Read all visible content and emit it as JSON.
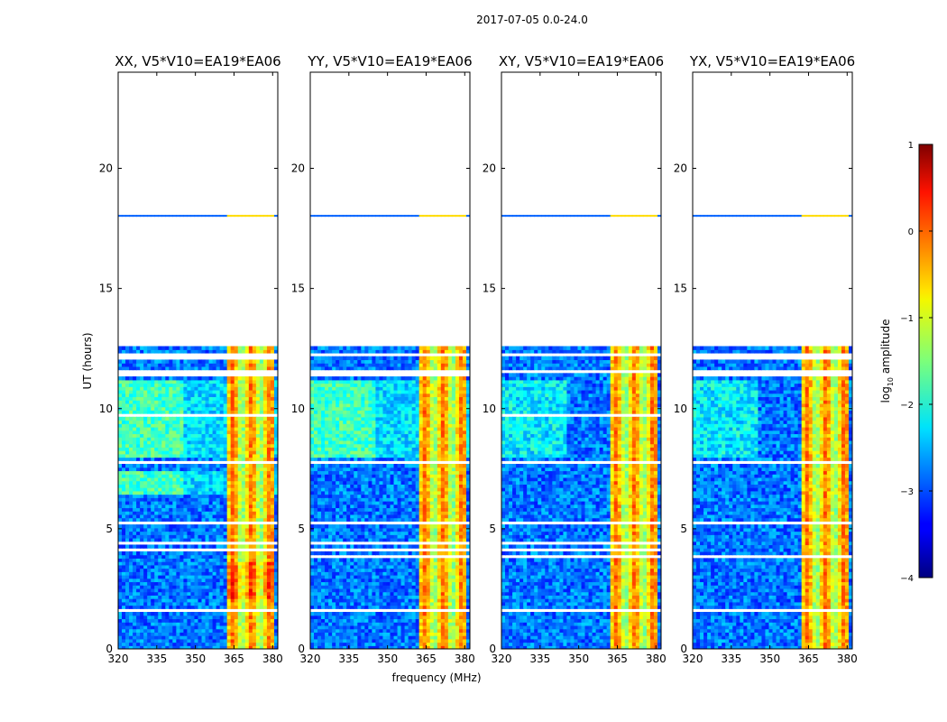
{
  "suptitle": "2017-07-05 0.0-24.0",
  "xlabel": "frequency (MHz)",
  "ylabel": "UT (hours)",
  "colorbar": {
    "label": "log",
    "label_sub": "10",
    "label_suffix": " amplitude",
    "ticks": [
      1,
      0,
      -1,
      -2,
      -3,
      -4
    ],
    "tick_labels": [
      "1",
      "0",
      "−1",
      "−2",
      "−3",
      "−4"
    ],
    "range": [
      -4,
      1
    ],
    "colormap": "jet"
  },
  "chart_data": {
    "type": "heatmap",
    "x_range": [
      320,
      382
    ],
    "y_range": [
      0,
      24
    ],
    "x_ticks": [
      320,
      335,
      350,
      365,
      380
    ],
    "y_ticks": [
      0,
      5,
      10,
      15,
      20
    ],
    "panels": [
      {
        "title": "XX, V5*V10=EA19*EA06",
        "pol": "XX"
      },
      {
        "title": "YY, V5*V10=EA19*EA06",
        "pol": "YY"
      },
      {
        "title": "XY, V5*V10=EA19*EA06",
        "pol": "XY"
      },
      {
        "title": "YX, V5*V10=EA19*EA06",
        "pol": "YX"
      }
    ],
    "data_time_range_hours": [
      0,
      12.6
    ],
    "extra_data_row_hours": 18.0,
    "bright_band_mhz": [
      362,
      380
    ],
    "typical_log10_amplitude": {
      "background": -2.8,
      "bright_band": -0.8,
      "parallel_hand_mid": -1.8
    }
  }
}
